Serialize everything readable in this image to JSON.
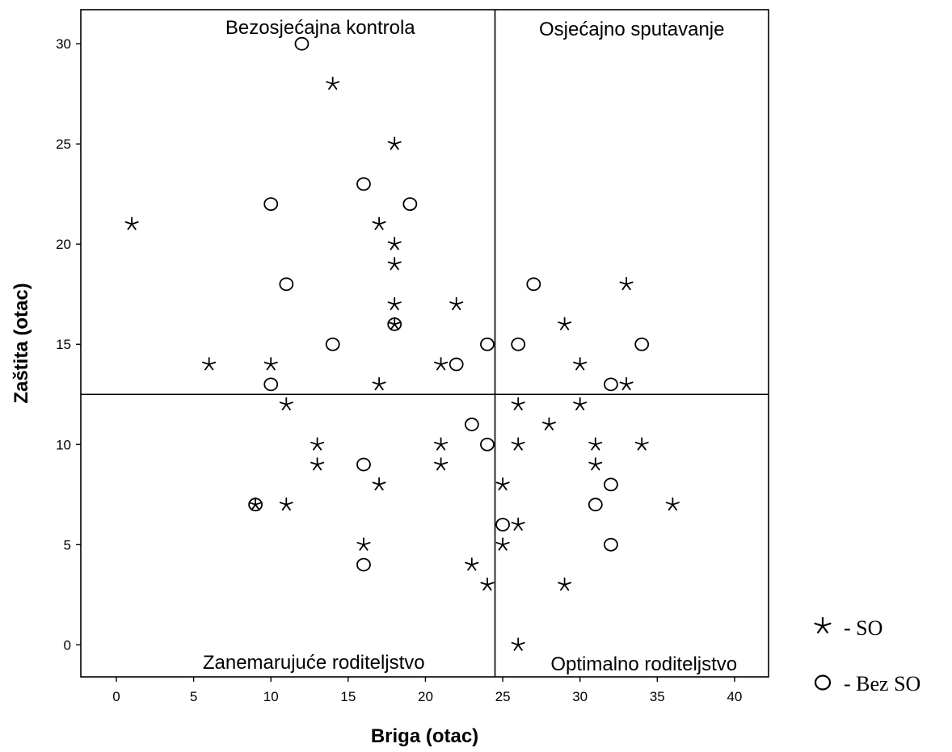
{
  "chart_data": {
    "type": "scatter",
    "xlabel": "Briga (otac)",
    "ylabel": "Zaštita (otac)",
    "xlim": [
      -2.3,
      42.2
    ],
    "ylim": [
      -1.6,
      31.7
    ],
    "x_ticks": [
      0,
      5,
      10,
      15,
      20,
      25,
      30,
      35,
      40
    ],
    "y_ticks": [
      0,
      5,
      10,
      15,
      20,
      25,
      30
    ],
    "grid": false,
    "reference_lines": {
      "x": 24.5,
      "y": 12.5
    },
    "quadrant_labels": {
      "top_left": "Bezosjećajna kontrola",
      "top_right": "Osjećajno sputavanje",
      "bottom_left": "Zanemarujuće roditeljstvo",
      "bottom_right": "Optimalno roditeljstvo"
    },
    "legend": {
      "placement": "right",
      "items": [
        {
          "marker": "star",
          "label": "-  SO"
        },
        {
          "marker": "circle",
          "label": "-  Bez SO"
        }
      ]
    },
    "series": [
      {
        "name": "SO",
        "marker": "star",
        "points": [
          [
            14,
            28
          ],
          [
            18,
            25
          ],
          [
            1,
            21
          ],
          [
            17,
            21
          ],
          [
            18,
            20
          ],
          [
            18,
            19
          ],
          [
            18,
            17
          ],
          [
            22,
            17
          ],
          [
            18,
            16
          ],
          [
            6,
            14
          ],
          [
            10,
            14
          ],
          [
            21,
            14
          ],
          [
            17,
            13
          ],
          [
            33,
            18
          ],
          [
            29,
            16
          ],
          [
            30,
            14
          ],
          [
            33,
            13
          ],
          [
            11,
            12
          ],
          [
            13,
            10
          ],
          [
            13,
            9
          ],
          [
            21,
            10
          ],
          [
            21,
            9
          ],
          [
            17,
            8
          ],
          [
            9,
            7
          ],
          [
            11,
            7
          ],
          [
            16,
            5
          ],
          [
            23,
            4
          ],
          [
            24,
            3
          ],
          [
            26,
            12
          ],
          [
            30,
            12
          ],
          [
            28,
            11
          ],
          [
            26,
            10
          ],
          [
            31,
            10
          ],
          [
            34,
            10
          ],
          [
            31,
            9
          ],
          [
            25,
            8
          ],
          [
            36,
            7
          ],
          [
            26,
            6
          ],
          [
            25,
            5
          ],
          [
            29,
            3
          ],
          [
            26,
            0
          ]
        ]
      },
      {
        "name": "Bez SO",
        "marker": "circle",
        "points": [
          [
            12,
            30
          ],
          [
            16,
            23
          ],
          [
            10,
            22
          ],
          [
            19,
            22
          ],
          [
            11,
            18
          ],
          [
            18,
            16
          ],
          [
            14,
            15
          ],
          [
            24,
            15
          ],
          [
            22,
            14
          ],
          [
            10,
            13
          ],
          [
            27,
            18
          ],
          [
            26,
            15
          ],
          [
            34,
            15
          ],
          [
            32,
            13
          ],
          [
            23,
            11
          ],
          [
            24,
            10
          ],
          [
            16,
            9
          ],
          [
            9,
            7
          ],
          [
            16,
            4
          ],
          [
            25,
            6
          ],
          [
            32,
            8
          ],
          [
            31,
            7
          ],
          [
            32,
            5
          ]
        ]
      }
    ]
  }
}
